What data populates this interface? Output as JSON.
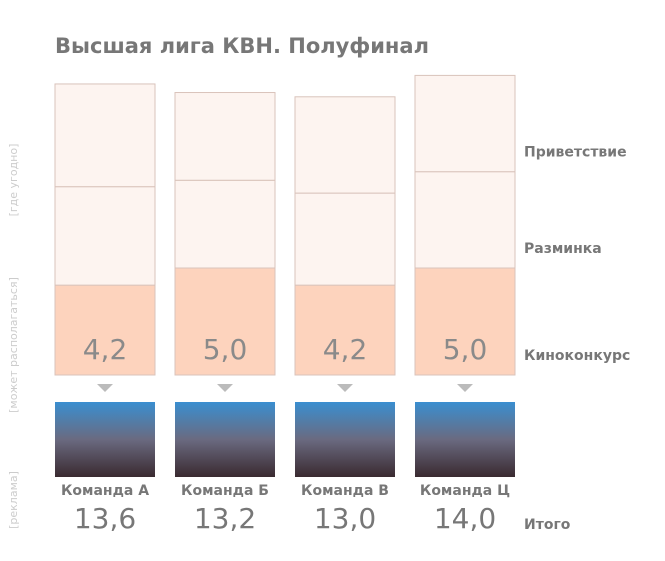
{
  "chart_data": {
    "type": "stacked-bar",
    "title": "Высшая лига КВН. Полуфинал",
    "categories": [
      "Команда А",
      "Команда Б",
      "Команда В",
      "Команда Ц"
    ],
    "series": [
      {
        "name": "Киноконкурс",
        "color": "#fdd3bd",
        "values": [
          4.2,
          5.0,
          4.2,
          5.0
        ],
        "value_labels": [
          "4,2",
          "5,0",
          "4,2",
          "5,0"
        ]
      },
      {
        "name": "Разминка",
        "color": "#fdf4f0",
        "values": [
          4.6,
          4.1,
          4.3,
          4.5
        ]
      },
      {
        "name": "Приветствие",
        "color": "#fdf4f0",
        "values": [
          4.8,
          4.1,
          4.5,
          4.5
        ]
      }
    ],
    "total_label": "Итого",
    "totals": [
      13.6,
      13.2,
      13.0,
      14.0
    ],
    "total_labels": [
      "13,6",
      "13,2",
      "13,0",
      "14,0"
    ],
    "side_notes": [
      "[где угодно]",
      "[может располагаться]",
      "[реклама]"
    ]
  }
}
